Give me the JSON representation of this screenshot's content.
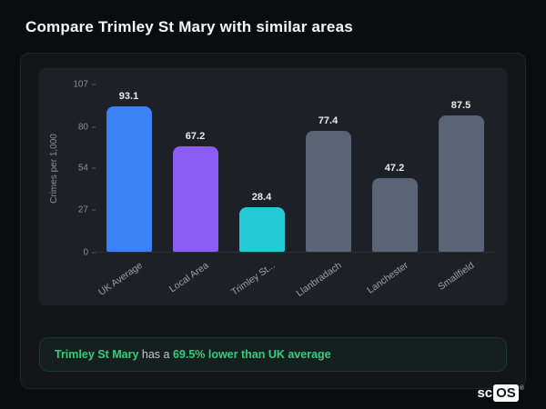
{
  "page": {
    "title": "Compare Trimley St Mary with similar areas"
  },
  "chart_data": {
    "type": "bar",
    "categories": [
      "UK Average",
      "Local Area",
      "Trimley St...",
      "Llanbradach",
      "Lanchester",
      "Smallfield"
    ],
    "values": [
      93.1,
      67.2,
      28.4,
      77.4,
      47.2,
      87.5
    ],
    "value_labels": [
      "93.1",
      "67.2",
      "28.4",
      "77.4",
      "47.2",
      "87.5"
    ],
    "bar_colors": [
      "#3b82f6",
      "#8b5cf6",
      "#23c9d4",
      "#5a6477",
      "#5a6477",
      "#5a6477"
    ],
    "title": "",
    "xlabel": "",
    "ylabel": "Crimes per 1,000",
    "yticks": [
      0,
      27,
      54,
      80,
      107
    ],
    "ylim": [
      0,
      107
    ],
    "grid": false,
    "legend": false
  },
  "note": {
    "subject": "Trimley St Mary",
    "middle": " has a ",
    "highlight": "69.5% lower than UK average"
  },
  "logo": {
    "prefix": "sc",
    "suffix": "OS",
    "reg": "®"
  },
  "colors": {
    "page_background": "#0b0c0e",
    "card_background": "#141519",
    "chart_background": "#1d2026",
    "accent_green": "#2fcf7f",
    "bar_blue": "#3b82f6",
    "bar_purple": "#8b5cf6",
    "bar_teal": "#23c9d4",
    "bar_gray": "#5a6477",
    "text_primary": "#f7f8f9",
    "text_muted": "#9aa0a8"
  }
}
